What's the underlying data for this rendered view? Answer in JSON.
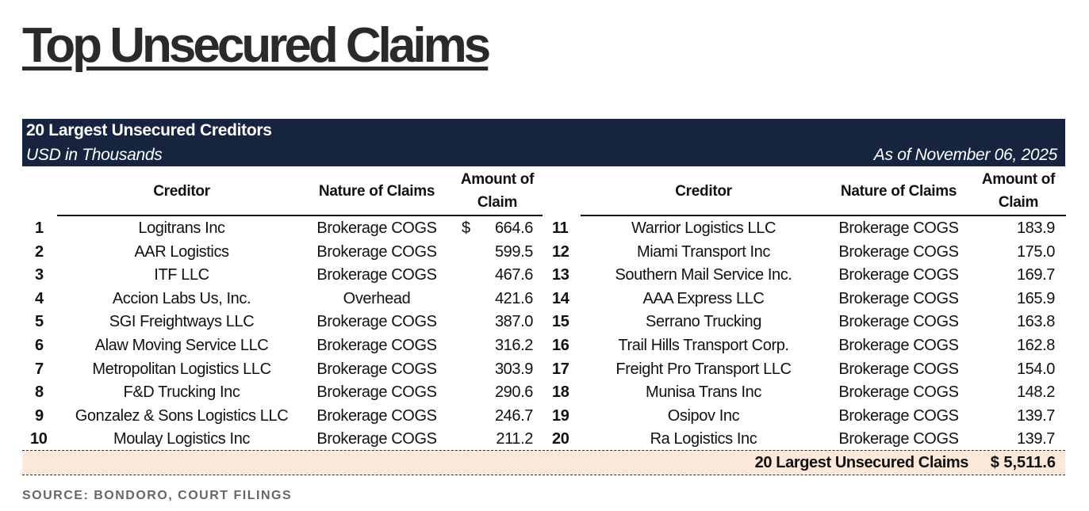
{
  "title": "Top Unsecured Claims",
  "table": {
    "heading": "20 Largest Unsecured Creditors",
    "units": "USD in Thousands",
    "as_of": "As of November 06, 2025",
    "columns": {
      "creditor": "Creditor",
      "nature": "Nature of Claims",
      "amount_line1": "Amount of",
      "amount_line2": "Claim"
    },
    "rows": [
      {
        "n": "1",
        "creditor": "Logitrans Inc",
        "nature": "Brokerage COGS",
        "currency": "$",
        "amount": "664.6"
      },
      {
        "n": "2",
        "creditor": "AAR Logistics",
        "nature": "Brokerage COGS",
        "amount": "599.5"
      },
      {
        "n": "3",
        "creditor": "ITF LLC",
        "nature": "Brokerage COGS",
        "amount": "467.6"
      },
      {
        "n": "4",
        "creditor": "Accion Labs Us, Inc.",
        "nature": "Overhead",
        "amount": "421.6"
      },
      {
        "n": "5",
        "creditor": "SGI Freightways LLC",
        "nature": "Brokerage COGS",
        "amount": "387.0"
      },
      {
        "n": "6",
        "creditor": "Alaw Moving Service LLC",
        "nature": "Brokerage COGS",
        "amount": "316.2"
      },
      {
        "n": "7",
        "creditor": "Metropolitan Logistics LLC",
        "nature": "Brokerage COGS",
        "amount": "303.9"
      },
      {
        "n": "8",
        "creditor": "F&D Trucking Inc",
        "nature": "Brokerage COGS",
        "amount": "290.6"
      },
      {
        "n": "9",
        "creditor": "Gonzalez & Sons Logistics LLC",
        "nature": "Brokerage COGS",
        "amount": "246.7"
      },
      {
        "n": "10",
        "creditor": "Moulay Logistics Inc",
        "nature": "Brokerage COGS",
        "amount": "211.2"
      },
      {
        "n": "11",
        "creditor": "Warrior Logistics LLC",
        "nature": "Brokerage COGS",
        "amount": "183.9"
      },
      {
        "n": "12",
        "creditor": "Miami Transport Inc",
        "nature": "Brokerage COGS",
        "amount": "175.0"
      },
      {
        "n": "13",
        "creditor": "Southern Mail Service Inc.",
        "nature": "Brokerage COGS",
        "amount": "169.7"
      },
      {
        "n": "14",
        "creditor": "AAA Express LLC",
        "nature": "Brokerage COGS",
        "amount": "165.9"
      },
      {
        "n": "15",
        "creditor": "Serrano Trucking",
        "nature": "Brokerage COGS",
        "amount": "163.8"
      },
      {
        "n": "16",
        "creditor": "Trail Hills Transport Corp.",
        "nature": "Brokerage COGS",
        "amount": "162.8"
      },
      {
        "n": "17",
        "creditor": "Freight Pro Transport LLC",
        "nature": "Brokerage COGS",
        "amount": "154.0"
      },
      {
        "n": "18",
        "creditor": "Munisa Trans Inc",
        "nature": "Brokerage COGS",
        "amount": "148.2"
      },
      {
        "n": "19",
        "creditor": "Osipov Inc",
        "nature": "Brokerage COGS",
        "amount": "139.7"
      },
      {
        "n": "20",
        "creditor": "Ra Logistics Inc",
        "nature": "Brokerage COGS",
        "amount": "139.7"
      }
    ],
    "total_label": "20 Largest Unsecured Claims",
    "total_value": "$ 5,511.6"
  },
  "colors": {
    "header_band": "#17243f",
    "total_row": "#fce8db"
  },
  "source": "SOURCE: BONDORO, COURT FILINGS"
}
